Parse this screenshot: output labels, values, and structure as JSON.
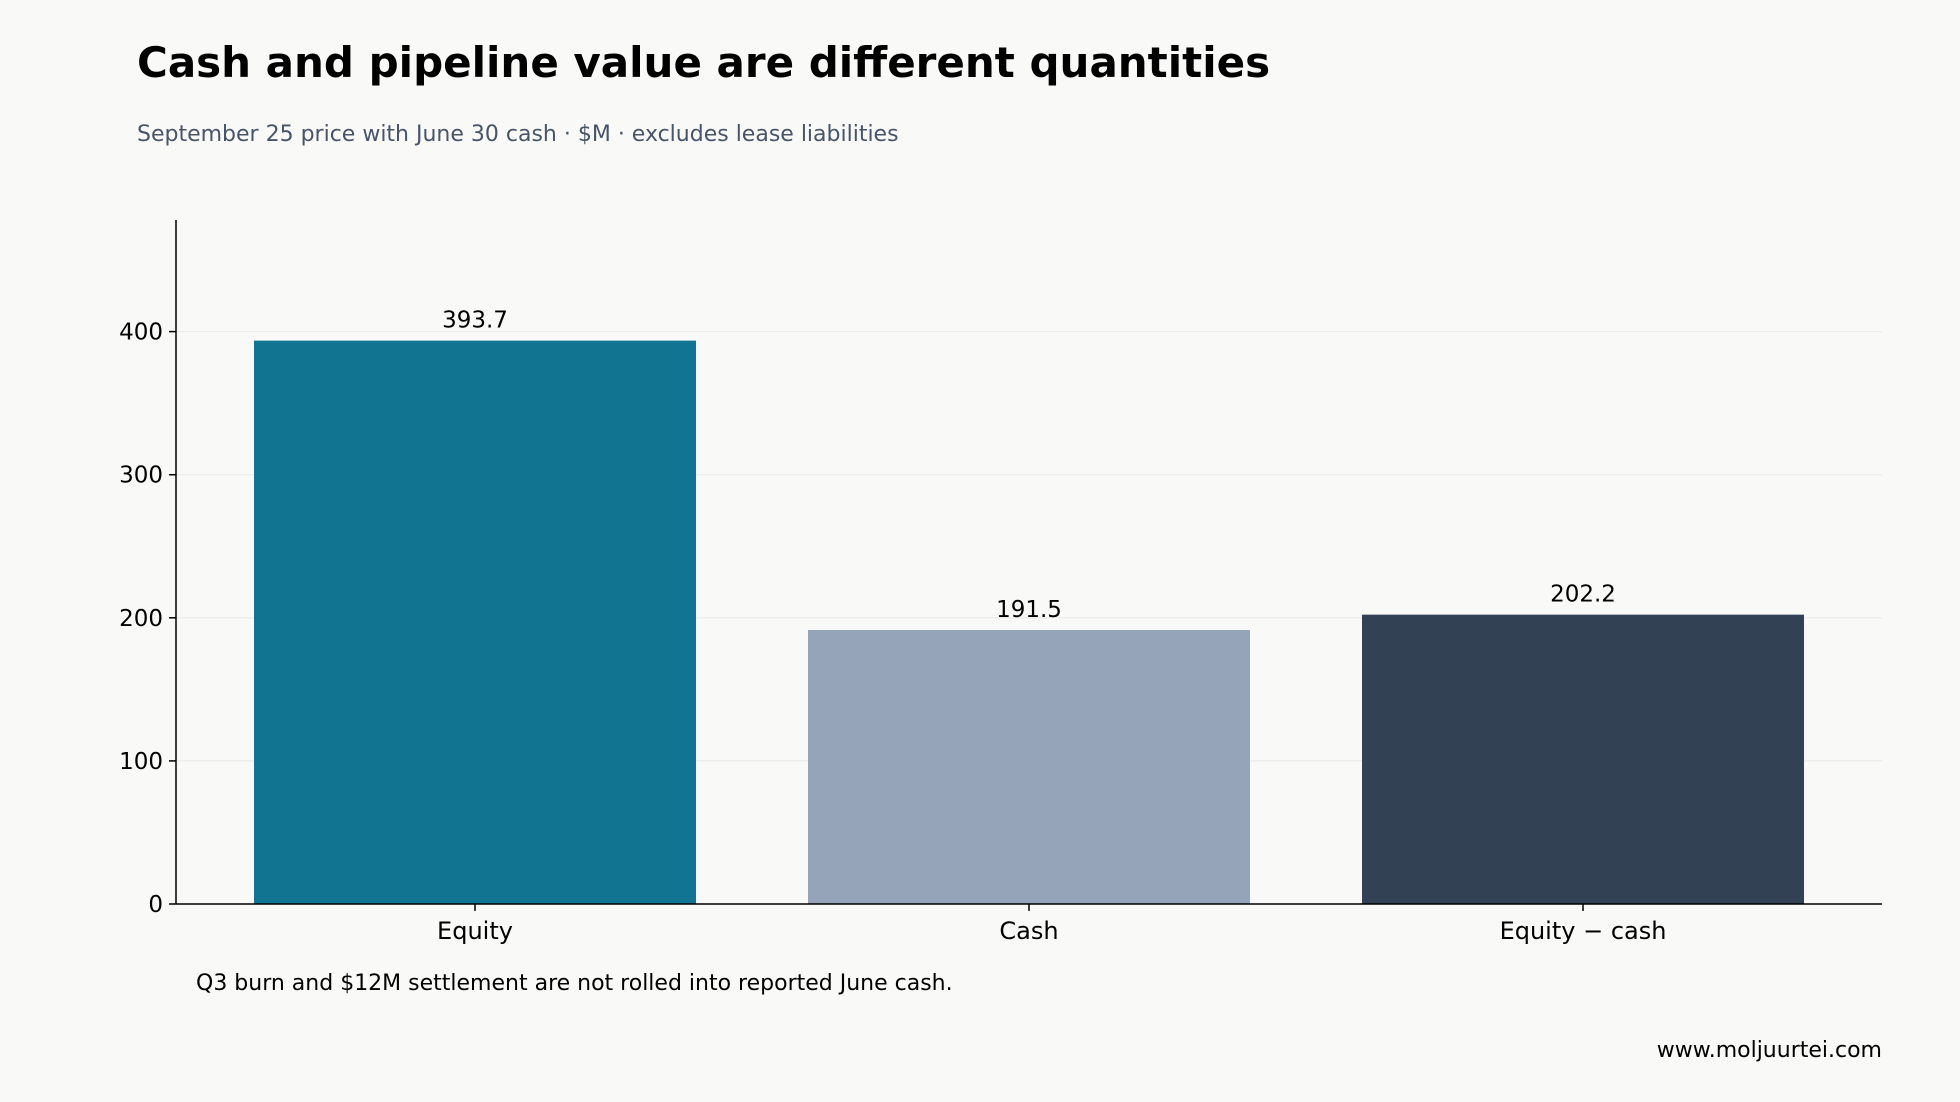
{
  "chart_data": {
    "type": "bar",
    "title": "Cash and pipeline value are different quantities",
    "subtitle": "September 25 price with June 30 cash · $M · excludes lease liabilities",
    "categories": [
      "Equity",
      "Cash",
      "Equity − cash"
    ],
    "values": [
      393.7,
      191.5,
      202.2
    ],
    "value_labels": [
      "393.7",
      "191.5",
      "202.2"
    ],
    "colors": [
      "#117591",
      "#95a4b9",
      "#334155"
    ],
    "xlabel": "",
    "ylabel": "",
    "ylim": [
      0,
      478
    ],
    "yticks": [
      0,
      100,
      200,
      300,
      400
    ],
    "grid": true,
    "footnote": "Q3 burn and $12M settlement are not rolled into reported June cash.",
    "source": "www.moljuurtei.com"
  }
}
